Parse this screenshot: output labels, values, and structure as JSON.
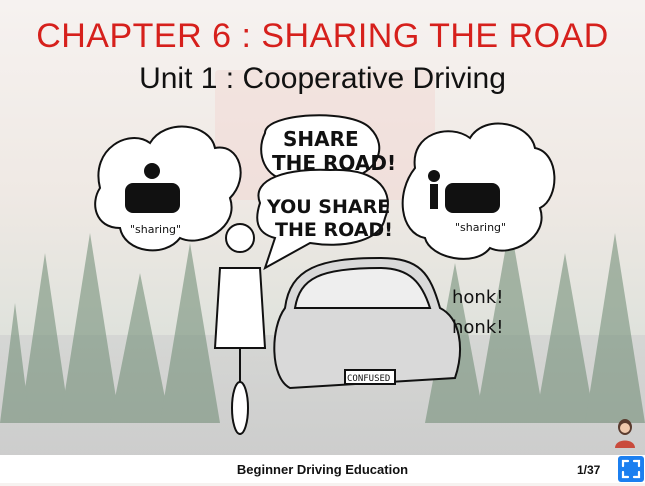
{
  "slide": {
    "title": "CHAPTER 6 : SHARING THE ROAD",
    "subtitle": "Unit 1 : Cooperative Driving",
    "footer": "Beginner Driving Education",
    "page_indicator": "1/37"
  },
  "illustration": {
    "bubble_share": [
      "SHARE",
      "THE ROAD!"
    ],
    "bubble_you_share": [
      "YOU SHARE",
      "THE ROAD!"
    ],
    "thought_left": "\"sharing\"",
    "thought_right": "\"sharing\"",
    "honk_1": "honk!",
    "honk_2": "honk!",
    "plate": "CONFUSED"
  },
  "colors": {
    "title": "#d6201c",
    "fullscreen_button": "#1b7ff0"
  },
  "icons": {
    "fullscreen": "fullscreen-expand-icon",
    "avatar": "presenter-avatar-icon"
  }
}
